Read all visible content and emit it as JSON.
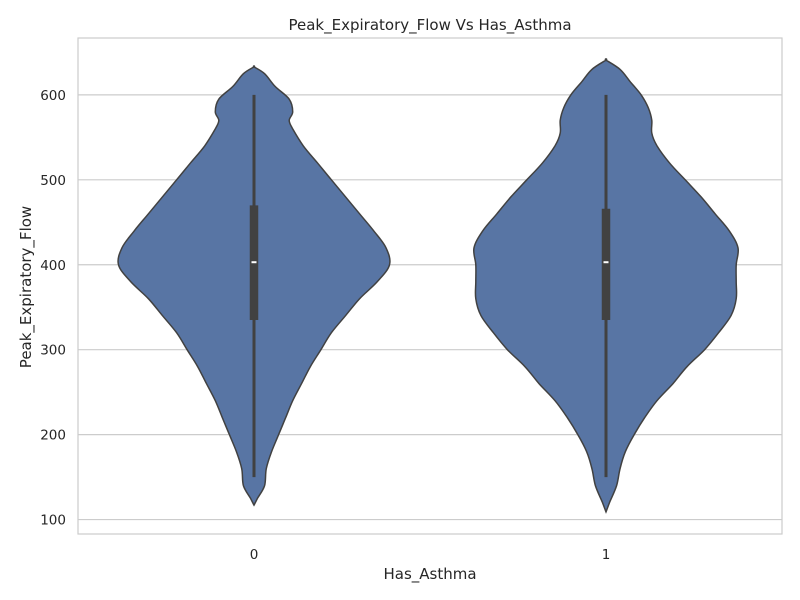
{
  "chart_data": {
    "type": "violin",
    "title": "Peak_Expiratory_Flow Vs Has_Asthma",
    "xlabel": "Has_Asthma",
    "ylabel": "Peak_Expiratory_Flow",
    "categories": [
      "0",
      "1"
    ],
    "yticks": [
      100,
      200,
      300,
      400,
      500,
      600
    ],
    "ylim": [
      83,
      667
    ],
    "grid": true,
    "colors": {
      "violin_fill": "#5875a4",
      "violin_edge": "#414141",
      "grid": "#cccccc",
      "median": "#ffffff"
    },
    "violins": [
      {
        "category": "0",
        "min": 150,
        "q1": 335,
        "median": 403,
        "q3": 470,
        "max": 600,
        "kde_max_width": 0.4,
        "profile": [
          [
            117,
            0.0
          ],
          [
            125,
            0.02
          ],
          [
            140,
            0.06
          ],
          [
            160,
            0.07
          ],
          [
            180,
            0.1
          ],
          [
            200,
            0.14
          ],
          [
            220,
            0.18
          ],
          [
            240,
            0.22
          ],
          [
            260,
            0.27
          ],
          [
            280,
            0.32
          ],
          [
            300,
            0.38
          ],
          [
            320,
            0.44
          ],
          [
            340,
            0.52
          ],
          [
            360,
            0.6
          ],
          [
            380,
            0.7
          ],
          [
            400,
            0.77
          ],
          [
            420,
            0.75
          ],
          [
            440,
            0.68
          ],
          [
            460,
            0.6
          ],
          [
            480,
            0.52
          ],
          [
            500,
            0.44
          ],
          [
            520,
            0.36
          ],
          [
            540,
            0.28
          ],
          [
            560,
            0.22
          ],
          [
            570,
            0.2
          ],
          [
            580,
            0.22
          ],
          [
            595,
            0.2
          ],
          [
            610,
            0.12
          ],
          [
            625,
            0.06
          ],
          [
            633,
            0.0
          ]
        ]
      },
      {
        "category": "1",
        "min": 150,
        "q1": 335,
        "median": 403,
        "q3": 466,
        "max": 600,
        "kde_max_width": 0.4,
        "profile": [
          [
            109,
            0.0
          ],
          [
            120,
            0.02
          ],
          [
            140,
            0.06
          ],
          [
            160,
            0.08
          ],
          [
            180,
            0.11
          ],
          [
            200,
            0.16
          ],
          [
            220,
            0.22
          ],
          [
            240,
            0.29
          ],
          [
            260,
            0.38
          ],
          [
            280,
            0.46
          ],
          [
            300,
            0.56
          ],
          [
            320,
            0.64
          ],
          [
            340,
            0.71
          ],
          [
            360,
            0.74
          ],
          [
            380,
            0.74
          ],
          [
            400,
            0.74
          ],
          [
            420,
            0.75
          ],
          [
            440,
            0.7
          ],
          [
            460,
            0.62
          ],
          [
            480,
            0.54
          ],
          [
            500,
            0.45
          ],
          [
            520,
            0.36
          ],
          [
            540,
            0.29
          ],
          [
            555,
            0.26
          ],
          [
            570,
            0.26
          ],
          [
            585,
            0.24
          ],
          [
            600,
            0.2
          ],
          [
            615,
            0.14
          ],
          [
            630,
            0.08
          ],
          [
            641,
            0.0
          ]
        ]
      }
    ]
  }
}
